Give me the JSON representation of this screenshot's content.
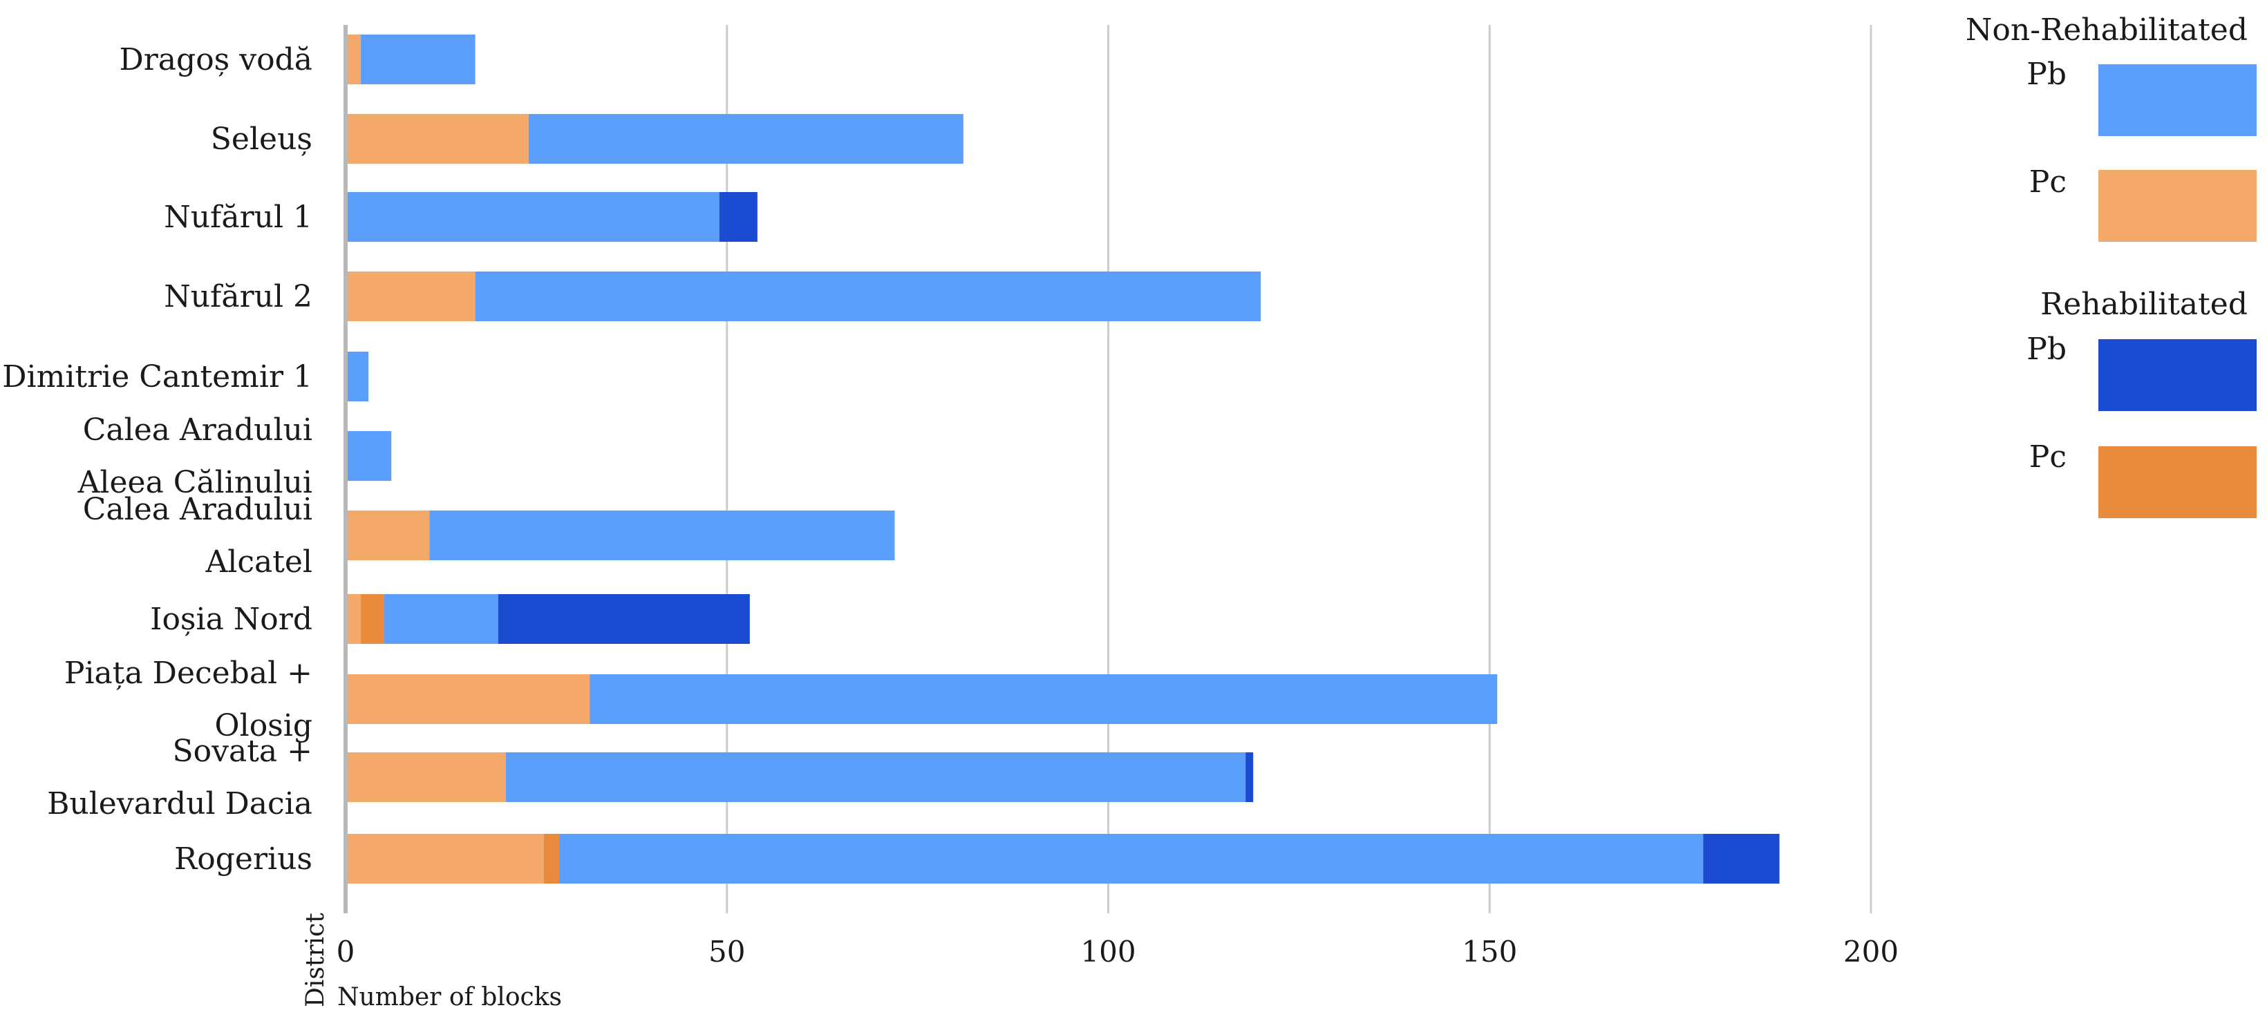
{
  "chart_data": {
    "type": "bar",
    "orientation": "horizontal",
    "stacked": true,
    "xlabel": "Number of blocks",
    "ylabel": "District",
    "xlim": [
      0,
      200
    ],
    "xticks": [
      0,
      50,
      100,
      150,
      200
    ],
    "grid": true,
    "categories": [
      [
        "Dragoș vodă"
      ],
      [
        "Seleuș"
      ],
      [
        "Nufărul 1"
      ],
      [
        "Nufărul 2"
      ],
      [
        "Dimitrie Cantemir 1"
      ],
      [
        "Calea Aradului",
        "Aleea Călinului"
      ],
      [
        "Calea Aradului",
        "Alcatel"
      ],
      [
        "Ioșia Nord"
      ],
      [
        "Piața Decebal +",
        "Olosig"
      ],
      [
        "Sovata +",
        "Bulevardul Dacia"
      ],
      [
        "Rogerius"
      ]
    ],
    "series": [
      {
        "name": "Pc",
        "group": "Non-Rehabilitated",
        "color": "#f4a96b",
        "values": [
          2,
          24,
          0,
          17,
          0,
          0,
          11,
          2,
          32,
          21,
          26
        ]
      },
      {
        "name": "Pc",
        "group": "Rehabilitated",
        "color": "#e98b3d",
        "values": [
          0,
          0,
          0,
          0,
          0,
          0,
          0,
          3,
          0,
          0,
          2
        ]
      },
      {
        "name": "Pb",
        "group": "Non-Rehabilitated",
        "color": "#5b9ffc",
        "values": [
          15,
          57,
          49,
          103,
          3,
          6,
          61,
          15,
          119,
          97,
          150
        ]
      },
      {
        "name": "Pb",
        "group": "Rehabilitated",
        "color": "#1a4bd1",
        "values": [
          0,
          0,
          5,
          0,
          0,
          0,
          0,
          33,
          0,
          1,
          10
        ]
      }
    ],
    "legend": {
      "placement": "right",
      "groups": [
        {
          "title": "Non-Rehabilitated",
          "items": [
            {
              "label": "Pb",
              "color": "#5b9ffc"
            },
            {
              "label": "Pc",
              "color": "#f4a96b"
            }
          ]
        },
        {
          "title": "Rehabilitated",
          "items": [
            {
              "label": "Pb",
              "color": "#1a4bd1"
            },
            {
              "label": "Pc",
              "color": "#e98b3d"
            }
          ]
        }
      ]
    }
  }
}
